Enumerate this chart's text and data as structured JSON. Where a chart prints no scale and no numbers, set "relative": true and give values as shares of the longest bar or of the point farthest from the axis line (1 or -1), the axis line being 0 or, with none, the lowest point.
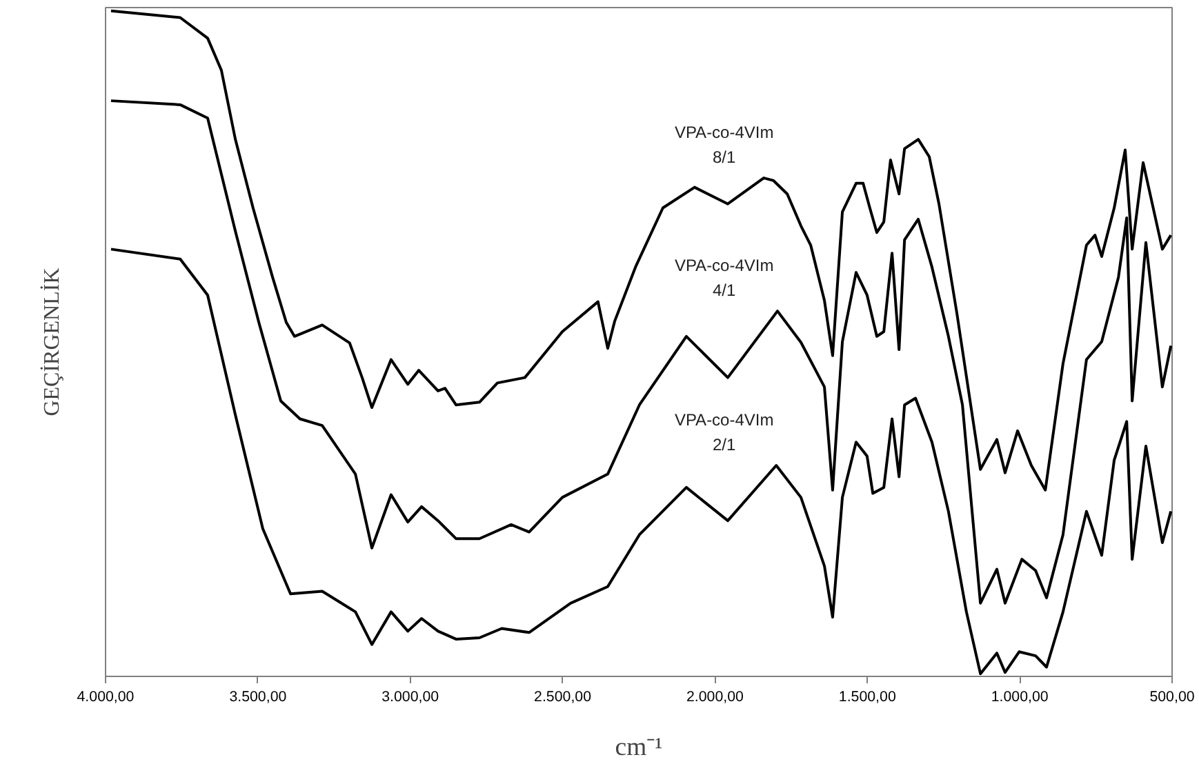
{
  "chart_data": {
    "type": "line",
    "relative": true,
    "xlabel": "cm⁻¹",
    "ylabel": "GEÇİRGENLİK",
    "xlim": [
      4000,
      500
    ],
    "xticks": [
      {
        "value": 4000,
        "label": "4.000,00"
      },
      {
        "value": 3500,
        "label": "3.500,00"
      },
      {
        "value": 3000,
        "label": "3.000,00"
      },
      {
        "value": 2500,
        "label": "2.500,00"
      },
      {
        "value": 2000,
        "label": "2.000,00"
      },
      {
        "value": 1500,
        "label": "1.500,00"
      },
      {
        "value": 1000,
        "label": "1.000,00"
      },
      {
        "value": 500,
        "label": "500,00"
      }
    ],
    "grid": false,
    "marker": "none",
    "line_style": "solid",
    "series": [
      {
        "name": "VPA-co-4VIm\n8/1",
        "color": "#000000",
        "x": [
          3982,
          3755,
          3665,
          3620,
          3574,
          3516,
          3452,
          3407,
          3380,
          3289,
          3199,
          3158,
          3126,
          3063,
          3008,
          2972,
          2909,
          2886,
          2850,
          2773,
          2714,
          2624,
          2501,
          2384,
          2352,
          2329,
          2261,
          2171,
          2067,
          1958,
          1840,
          1808,
          1763,
          1718,
          1686,
          1641,
          1614,
          1582,
          1537,
          1514,
          1492,
          1469,
          1446,
          1424,
          1396,
          1378,
          1333,
          1297,
          1265,
          1206,
          1129,
          1075,
          1048,
          1007,
          962,
          916,
          858,
          781,
          753,
          731,
          690,
          654,
          631,
          595,
          532,
          504
        ],
        "values": [
          1.0,
          0.99,
          0.959,
          0.911,
          0.807,
          0.704,
          0.6,
          0.532,
          0.511,
          0.528,
          0.501,
          0.449,
          0.404,
          0.476,
          0.439,
          0.46,
          0.429,
          0.433,
          0.408,
          0.412,
          0.441,
          0.449,
          0.518,
          0.563,
          0.493,
          0.534,
          0.615,
          0.704,
          0.735,
          0.71,
          0.749,
          0.745,
          0.725,
          0.677,
          0.648,
          0.565,
          0.482,
          0.698,
          0.741,
          0.741,
          0.704,
          0.667,
          0.683,
          0.776,
          0.725,
          0.793,
          0.807,
          0.781,
          0.71,
          0.545,
          0.311,
          0.356,
          0.306,
          0.369,
          0.317,
          0.28,
          0.47,
          0.648,
          0.663,
          0.631,
          0.704,
          0.791,
          0.642,
          0.772,
          0.642,
          0.663
        ]
      },
      {
        "name": "VPA-co-4VIm\n4/1",
        "color": "#000000",
        "x": [
          3982,
          3755,
          3665,
          3574,
          3497,
          3425,
          3362,
          3289,
          3180,
          3126,
          3063,
          3008,
          2963,
          2909,
          2850,
          2773,
          2669,
          2610,
          2501,
          2352,
          2248,
          2094,
          1958,
          1795,
          1718,
          1641,
          1614,
          1582,
          1537,
          1501,
          1469,
          1446,
          1419,
          1396,
          1378,
          1333,
          1288,
          1234,
          1188,
          1129,
          1075,
          1048,
          993,
          948,
          912,
          858,
          781,
          731,
          676,
          649,
          631,
          586,
          532,
          504
        ],
        "values": [
          0.865,
          0.859,
          0.839,
          0.669,
          0.532,
          0.414,
          0.387,
          0.377,
          0.304,
          0.193,
          0.273,
          0.232,
          0.255,
          0.234,
          0.207,
          0.207,
          0.228,
          0.217,
          0.269,
          0.304,
          0.408,
          0.511,
          0.449,
          0.549,
          0.502,
          0.435,
          0.28,
          0.503,
          0.607,
          0.573,
          0.511,
          0.518,
          0.636,
          0.491,
          0.656,
          0.687,
          0.615,
          0.511,
          0.408,
          0.11,
          0.161,
          0.11,
          0.176,
          0.159,
          0.118,
          0.213,
          0.476,
          0.503,
          0.6,
          0.689,
          0.414,
          0.652,
          0.435,
          0.497
        ]
      },
      {
        "name": "VPA-co-4VIm\n2/1",
        "color": "#000000",
        "x": [
          3982,
          3755,
          3665,
          3574,
          3484,
          3393,
          3289,
          3180,
          3126,
          3063,
          3008,
          2963,
          2909,
          2850,
          2773,
          2700,
          2610,
          2474,
          2352,
          2248,
          2094,
          1958,
          1799,
          1718,
          1641,
          1614,
          1582,
          1537,
          1501,
          1482,
          1446,
          1419,
          1396,
          1378,
          1342,
          1288,
          1234,
          1175,
          1129,
          1075,
          1048,
          1002,
          948,
          912,
          858,
          781,
          731,
          690,
          649,
          631,
          586,
          532,
          504
        ],
        "values": [
          0.642,
          0.627,
          0.573,
          0.393,
          0.222,
          0.124,
          0.128,
          0.097,
          0.048,
          0.097,
          0.068,
          0.087,
          0.068,
          0.056,
          0.058,
          0.072,
          0.066,
          0.11,
          0.135,
          0.213,
          0.284,
          0.234,
          0.317,
          0.269,
          0.166,
          0.089,
          0.269,
          0.352,
          0.331,
          0.275,
          0.284,
          0.387,
          0.3,
          0.408,
          0.418,
          0.352,
          0.248,
          0.097,
          0.004,
          0.035,
          0.006,
          0.037,
          0.031,
          0.014,
          0.097,
          0.248,
          0.182,
          0.325,
          0.383,
          0.176,
          0.346,
          0.201,
          0.248
        ]
      }
    ]
  }
}
